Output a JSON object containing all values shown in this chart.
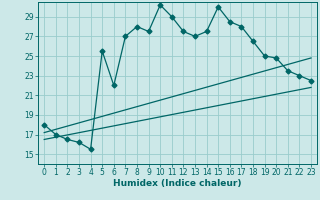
{
  "title": "",
  "xlabel": "Humidex (Indice chaleur)",
  "background_color": "#cce8e8",
  "grid_color": "#99cccc",
  "line_color": "#006666",
  "xlim": [
    -0.5,
    23.5
  ],
  "ylim": [
    14.0,
    30.5
  ],
  "xticks": [
    0,
    1,
    2,
    3,
    4,
    5,
    6,
    7,
    8,
    9,
    10,
    11,
    12,
    13,
    14,
    15,
    16,
    17,
    18,
    19,
    20,
    21,
    22,
    23
  ],
  "yticks": [
    15,
    17,
    19,
    21,
    23,
    25,
    27,
    29
  ],
  "main_x": [
    0,
    1,
    2,
    3,
    4,
    5,
    6,
    7,
    8,
    9,
    10,
    11,
    12,
    13,
    14,
    15,
    16,
    17,
    18,
    19,
    20,
    21,
    22,
    23
  ],
  "main_y": [
    18.0,
    17.0,
    16.5,
    16.2,
    15.5,
    25.5,
    22.0,
    27.0,
    28.0,
    27.5,
    30.2,
    29.0,
    27.5,
    27.0,
    27.5,
    30.0,
    28.5,
    28.0,
    26.5,
    25.0,
    24.8,
    23.5,
    23.0,
    22.5
  ],
  "line1_x": [
    0,
    23
  ],
  "line1_y": [
    17.2,
    24.8
  ],
  "line2_x": [
    0,
    23
  ],
  "line2_y": [
    16.5,
    21.8
  ],
  "marker_size": 2.5,
  "xlabel_fontsize": 6.5,
  "tick_fontsize": 5.5,
  "line_width": 0.9
}
